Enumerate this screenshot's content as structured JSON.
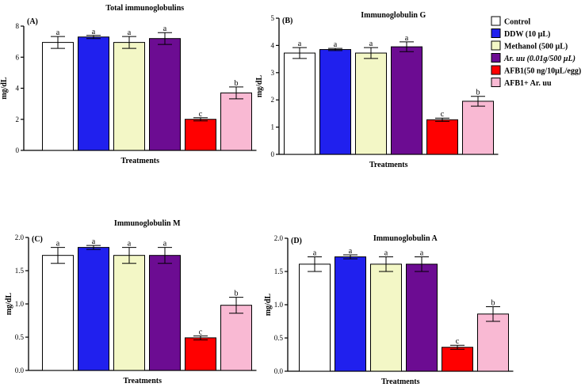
{
  "legend": {
    "items": [
      {
        "label": "Control",
        "color": "#ffffff",
        "italic": false
      },
      {
        "label": "DDW (10 µL)",
        "color": "#2020ee",
        "italic": false
      },
      {
        "label": "Methanol (500 µL)",
        "color": "#f3f7c6",
        "italic": false
      },
      {
        "label": "Ar. uu (0.01g/500 µL)",
        "color": "#6c0c92",
        "italic": true
      },
      {
        "label": "AFB1(50 ng/10µL/egg)",
        "color": "#ff0000",
        "italic": false
      },
      {
        "label": "AFB1+ Ar. uu",
        "color": "#f9b9d3",
        "italic": false
      }
    ]
  },
  "chart_data": [
    {
      "type": "bar",
      "panel": "(A)",
      "title": "Total immunoglobulins",
      "xlabel": "Treatments",
      "ylabel": "mg/dL",
      "ylim": [
        0,
        8
      ],
      "yticks": [
        0,
        2,
        4,
        6,
        8
      ],
      "ytick_labels": [
        "0",
        "2",
        "4",
        "6",
        "8"
      ],
      "categories": [
        "Control",
        "DDW (10 µL)",
        "Methanol (500 µL)",
        "Ar. uu (0.01g/500 µL)",
        "AFB1(50 ng/10µL/egg)",
        "AFB1+ Ar. uu"
      ],
      "values": [
        6.95,
        7.3,
        6.95,
        7.2,
        2.0,
        3.7
      ],
      "errors": [
        0.38,
        0.1,
        0.38,
        0.38,
        0.1,
        0.38
      ],
      "letters": [
        "a",
        "a",
        "a",
        "a",
        "c",
        "b"
      ]
    },
    {
      "type": "bar",
      "panel": "(B)",
      "title": "Immunoglobulin G",
      "xlabel": "Treatments",
      "ylabel": "mg/dL",
      "ylim": [
        0,
        5
      ],
      "yticks": [
        0,
        1,
        2,
        3,
        4,
        5
      ],
      "ytick_labels": [
        "0",
        "1",
        "2",
        "3",
        "4",
        "5"
      ],
      "categories": [
        "Control",
        "DDW (10 µL)",
        "Methanol (500 µL)",
        "Ar. uu (0.01g/500 µL)",
        "AFB1(50 ng/10µL/egg)",
        "AFB1+ Ar. uu"
      ],
      "values": [
        3.72,
        3.85,
        3.72,
        3.95,
        1.27,
        1.95
      ],
      "errors": [
        0.2,
        0.04,
        0.2,
        0.18,
        0.06,
        0.18
      ],
      "letters": [
        "a",
        "a",
        "a",
        "a",
        "c",
        "b"
      ]
    },
    {
      "type": "bar",
      "panel": "(C)",
      "title": "Immunoglobulin M",
      "xlabel": "Treatments",
      "ylabel": "mg/dL",
      "ylim": [
        0,
        2.0
      ],
      "yticks": [
        0,
        0.5,
        1.0,
        1.5,
        2.0
      ],
      "ytick_labels": [
        "0.0",
        "0.5",
        "1.0",
        "1.5",
        "2.0"
      ],
      "categories": [
        "Control",
        "DDW (10 µL)",
        "Methanol (500 µL)",
        "Ar. uu (0.01g/500 µL)",
        "AFB1(50 ng/10µL/egg)",
        "AFB1+ Ar. uu"
      ],
      "values": [
        1.73,
        1.85,
        1.73,
        1.73,
        0.49,
        0.98
      ],
      "errors": [
        0.12,
        0.03,
        0.12,
        0.12,
        0.03,
        0.12
      ],
      "letters": [
        "a",
        "a",
        "a",
        "a",
        "c",
        "b"
      ]
    },
    {
      "type": "bar",
      "panel": "(D)",
      "title": "Immunoglobulin A",
      "xlabel": "Treatments",
      "ylabel": "mg/dL",
      "ylim": [
        0,
        2.0
      ],
      "yticks": [
        0,
        0.5,
        1.0,
        1.5,
        2.0
      ],
      "ytick_labels": [
        "0.0",
        "0.5",
        "1.0",
        "1.5",
        "2.0"
      ],
      "categories": [
        "Control",
        "DDW (10 µL)",
        "Methanol (500 µL)",
        "Ar. uu (0.01g/500 µL)",
        "AFB1(50 ng/10µL/egg)",
        "AFB1+ Ar. uu"
      ],
      "values": [
        1.61,
        1.72,
        1.61,
        1.61,
        0.36,
        0.86
      ],
      "errors": [
        0.11,
        0.03,
        0.11,
        0.11,
        0.03,
        0.11
      ],
      "letters": [
        "a",
        "a",
        "a",
        "a",
        "c",
        "b"
      ]
    }
  ]
}
